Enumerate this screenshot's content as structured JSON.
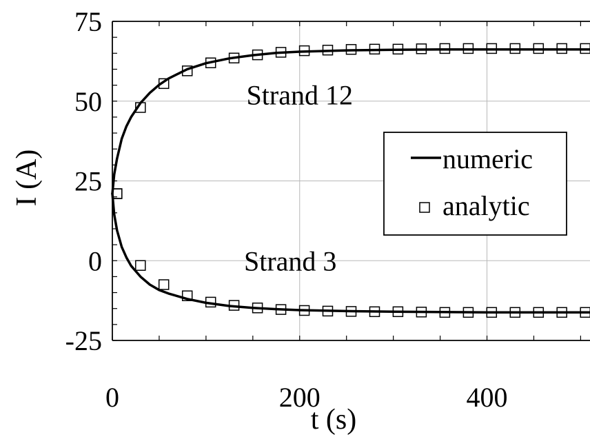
{
  "chart_data": {
    "type": "line",
    "title": "",
    "xlabel": "t (s)",
    "ylabel": "I (A)",
    "xlim": [
      0,
      510
    ],
    "ylim": [
      -25,
      75
    ],
    "x_ticks": [
      0,
      200,
      400
    ],
    "x_tick_labels": [
      "0",
      "200",
      "400"
    ],
    "y_ticks": [
      -25,
      0,
      25,
      50,
      75
    ],
    "y_tick_labels": [
      "-25",
      "0",
      "25",
      "50",
      "75"
    ],
    "grid": true,
    "legend": {
      "placement": "center-right",
      "entries": [
        {
          "label": "numeric",
          "marker": "line"
        },
        {
          "label": "analytic",
          "marker": "open-square"
        }
      ]
    },
    "annotations": [
      {
        "text": "Strand 12",
        "x": 200,
        "y": 52
      },
      {
        "text": "Strand 3",
        "x": 190,
        "y": 0
      }
    ],
    "series": [
      {
        "curve": "Strand 12",
        "kind": "numeric",
        "x": [
          0,
          2,
          5,
          10,
          15,
          20,
          30,
          40,
          50,
          60,
          80,
          100,
          125,
          150,
          175,
          200,
          250,
          300,
          350,
          400,
          450,
          510
        ],
        "y": [
          21,
          27,
          32,
          38.2,
          42.1,
          45,
          49.4,
          52.6,
          55.1,
          57.1,
          60,
          61.9,
          63.4,
          64.4,
          65.1,
          65.5,
          65.9,
          66.1,
          66.2,
          66.2,
          66.2,
          66.2
        ]
      },
      {
        "curve": "Strand 12",
        "kind": "analytic",
        "x": [
          5,
          30,
          55,
          80,
          105,
          130,
          155,
          180,
          205,
          230,
          255,
          280,
          305,
          330,
          355,
          380,
          405,
          430,
          455,
          480,
          505
        ],
        "y": [
          21,
          48,
          55.5,
          59.5,
          62,
          63.5,
          64.5,
          65.3,
          65.8,
          66,
          66.2,
          66.3,
          66.3,
          66.4,
          66.5,
          66.5,
          66.5,
          66.5,
          66.5,
          66.5,
          66.5
        ]
      },
      {
        "curve": "Strand 3",
        "kind": "numeric",
        "x": [
          0,
          2,
          5,
          10,
          15,
          20,
          30,
          40,
          50,
          60,
          80,
          100,
          125,
          150,
          175,
          200,
          250,
          300,
          350,
          400,
          450,
          510
        ],
        "y": [
          21,
          14.5,
          9.5,
          4.3,
          1,
          -1.6,
          -5,
          -7.5,
          -9.2,
          -10.3,
          -12,
          -13.2,
          -14.2,
          -14.8,
          -15.2,
          -15.5,
          -15.8,
          -16,
          -16.1,
          -16.2,
          -16.2,
          -16.2
        ]
      },
      {
        "curve": "Strand 3",
        "kind": "analytic",
        "x": [
          5,
          30,
          55,
          80,
          105,
          130,
          155,
          180,
          205,
          230,
          255,
          280,
          305,
          330,
          355,
          380,
          405,
          430,
          455,
          480,
          505
        ],
        "y": [
          21,
          -1.5,
          -7.5,
          -11,
          -13,
          -14,
          -14.8,
          -15.3,
          -15.6,
          -15.8,
          -15.9,
          -16,
          -16,
          -16.1,
          -16.2,
          -16.2,
          -16.2,
          -16.2,
          -16.2,
          -16.2,
          -16.2
        ]
      }
    ]
  }
}
